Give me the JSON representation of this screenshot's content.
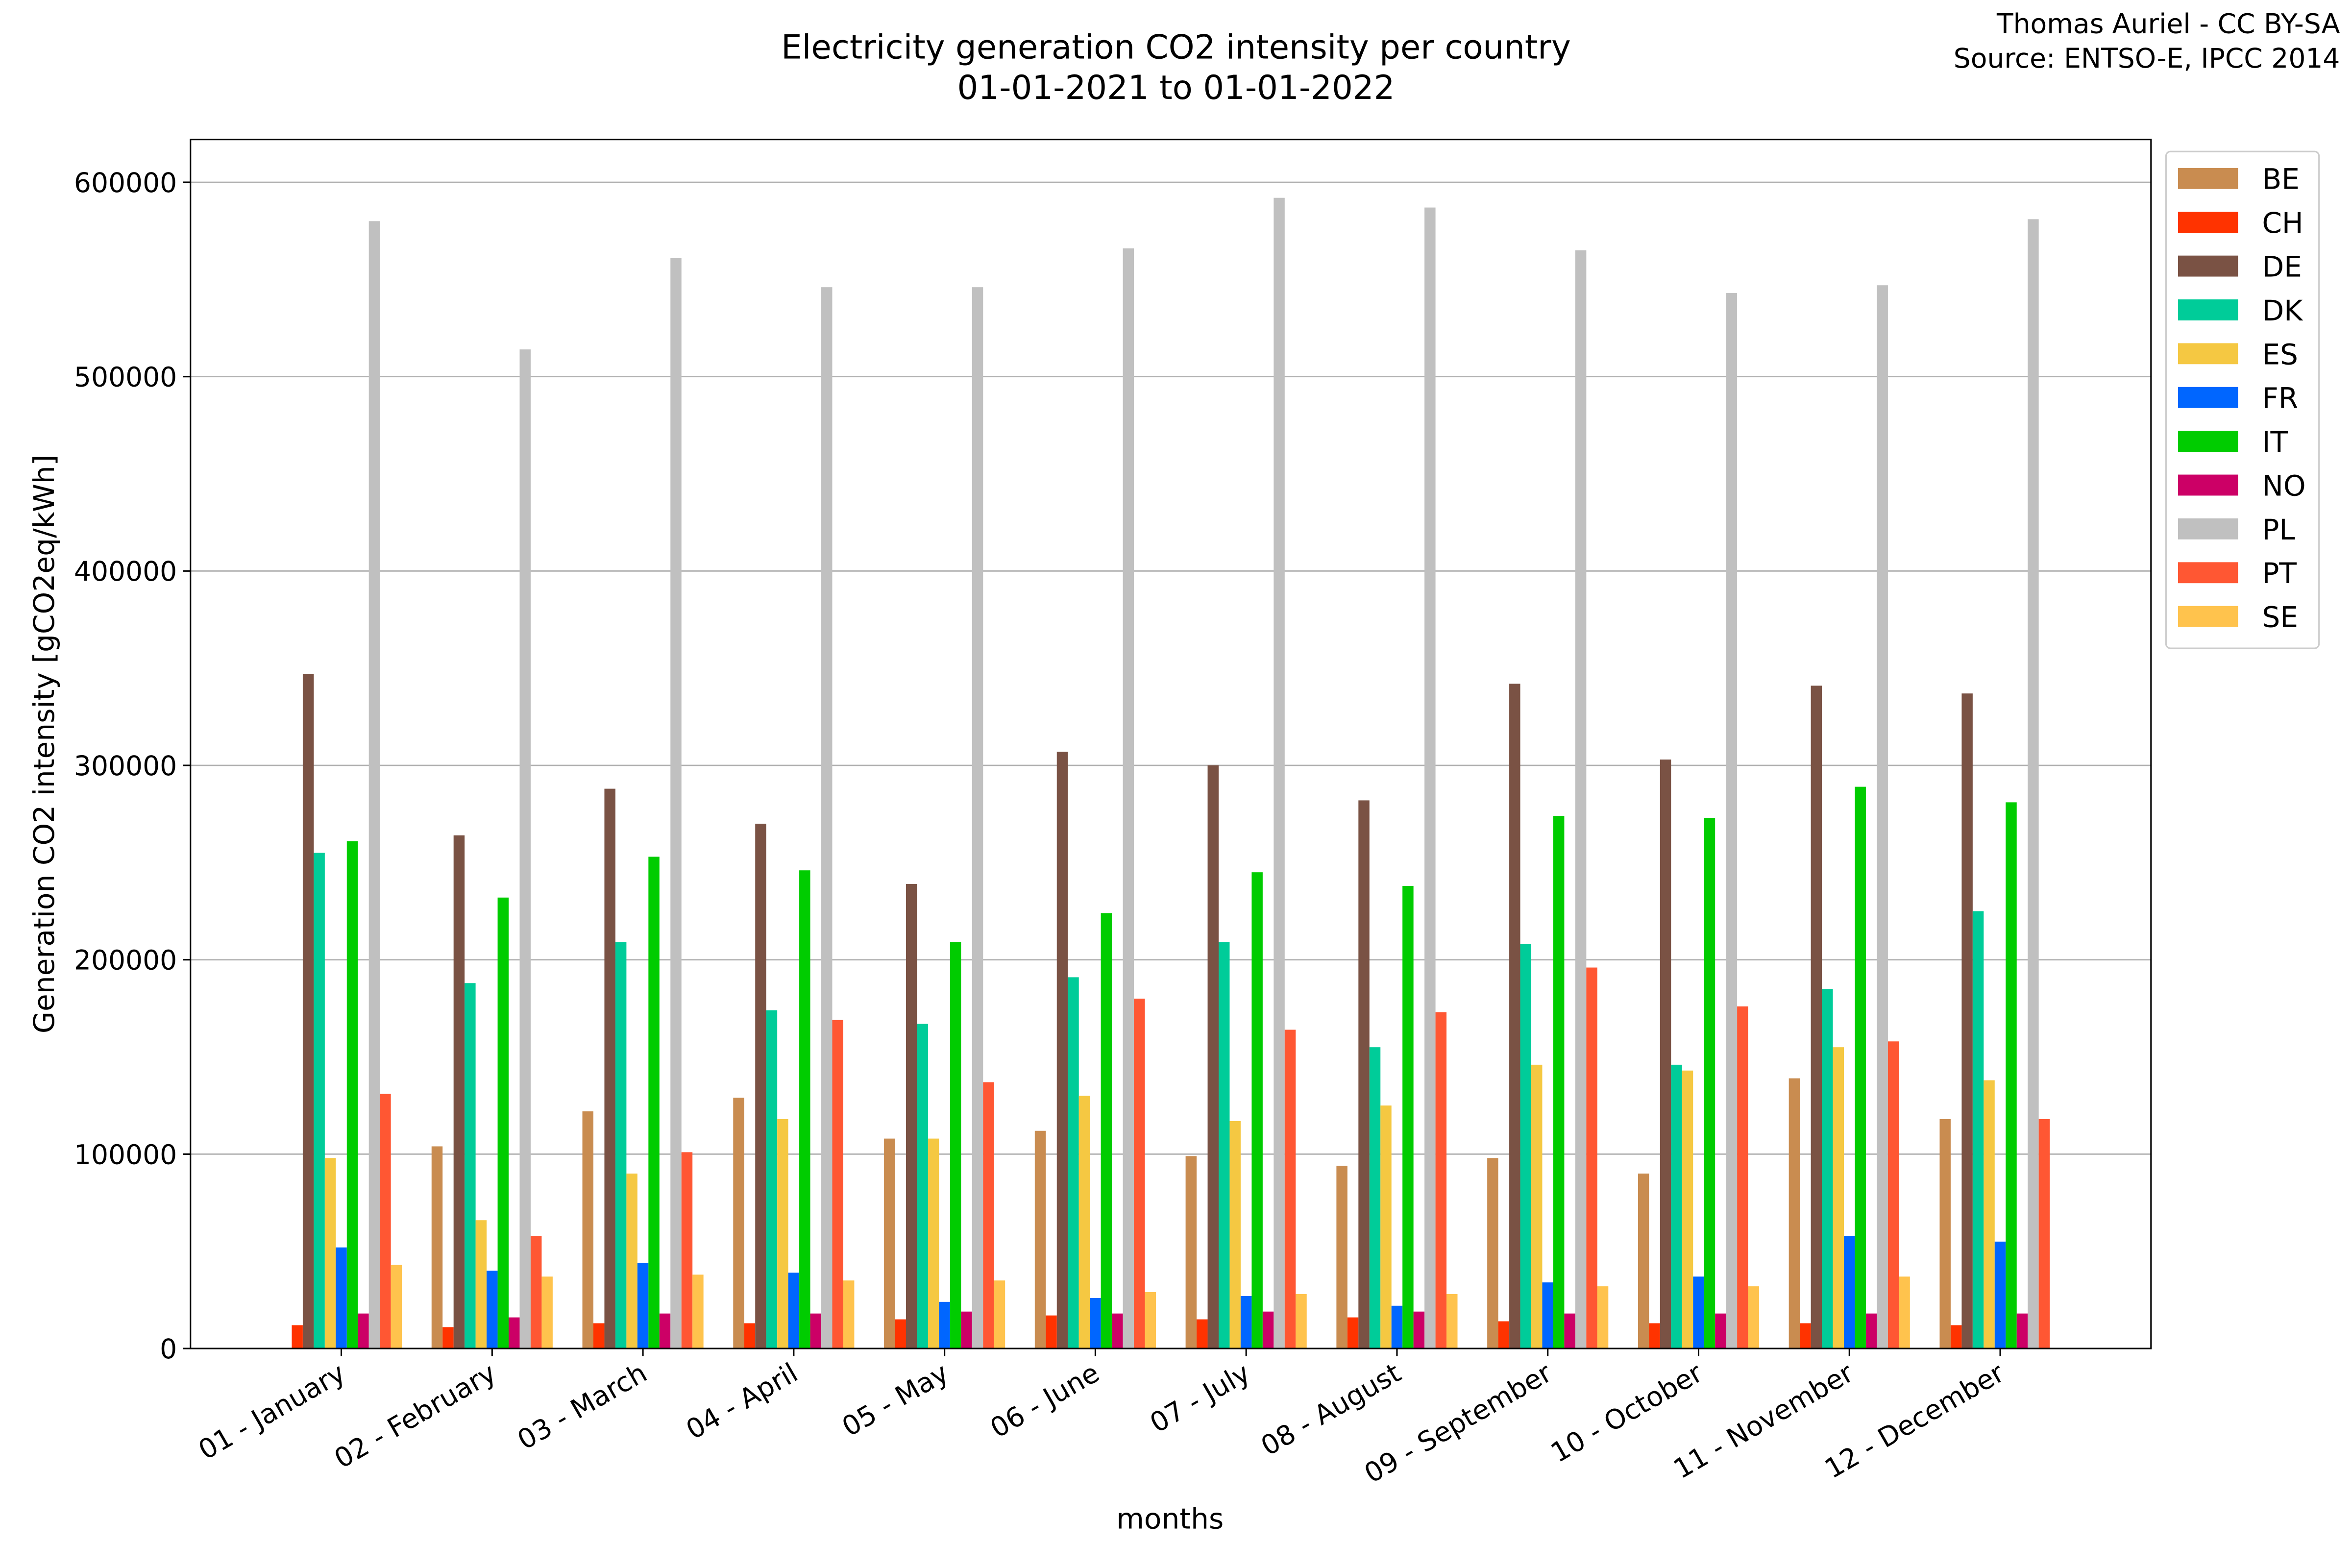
{
  "chart_data": {
    "type": "bar",
    "title": "Electricity generation CO2 intensity per country",
    "subtitle": "01-01-2021 to 01-01-2022",
    "annotations": [
      "Thomas Auriel - CC BY-SA",
      "Source: ENTSO-E, IPCC 2014"
    ],
    "x_label": "months",
    "y_label": "Generation CO2 intensity [gCO2eq/kWh]",
    "categories": [
      "01 - January",
      "02 - February",
      "03 - March",
      "04 - April",
      "05 - May",
      "06 - June",
      "07 - July",
      "08 - August",
      "09 - September",
      "10 - October",
      "11 - November",
      "12 - December"
    ],
    "series": [
      {
        "name": "BE",
        "color": "#c98c50",
        "values": [
          null,
          104000,
          122000,
          129000,
          108000,
          112000,
          99000,
          94000,
          98000,
          90000,
          139000,
          118000
        ]
      },
      {
        "name": "CH",
        "color": "#ff3300",
        "values": [
          12000,
          11000,
          13000,
          13000,
          15000,
          17000,
          15000,
          16000,
          14000,
          13000,
          13000,
          12000
        ]
      },
      {
        "name": "DE",
        "color": "#7a5244",
        "values": [
          347000,
          264000,
          288000,
          270000,
          239000,
          307000,
          300000,
          282000,
          342000,
          303000,
          341000,
          337000
        ]
      },
      {
        "name": "DK",
        "color": "#00cc99",
        "values": [
          255000,
          188000,
          209000,
          174000,
          167000,
          191000,
          209000,
          155000,
          208000,
          146000,
          185000,
          225000
        ]
      },
      {
        "name": "ES",
        "color": "#f5c842",
        "values": [
          98000,
          66000,
          90000,
          118000,
          108000,
          130000,
          117000,
          125000,
          146000,
          143000,
          155000,
          138000
        ]
      },
      {
        "name": "FR",
        "color": "#0066ff",
        "values": [
          52000,
          40000,
          44000,
          39000,
          24000,
          26000,
          27000,
          22000,
          34000,
          37000,
          58000,
          55000
        ]
      },
      {
        "name": "IT",
        "color": "#00cc00",
        "values": [
          261000,
          232000,
          253000,
          246000,
          209000,
          224000,
          245000,
          238000,
          274000,
          273000,
          289000,
          281000
        ]
      },
      {
        "name": "NO",
        "color": "#cc0066",
        "values": [
          18000,
          16000,
          18000,
          18000,
          19000,
          18000,
          19000,
          19000,
          18000,
          18000,
          18000,
          18000
        ]
      },
      {
        "name": "PL",
        "color": "#c0c0c0",
        "values": [
          580000,
          514000,
          561000,
          546000,
          546000,
          566000,
          592000,
          587000,
          565000,
          543000,
          547000,
          581000
        ]
      },
      {
        "name": "PT",
        "color": "#ff5733",
        "values": [
          131000,
          58000,
          101000,
          169000,
          137000,
          180000,
          164000,
          173000,
          196000,
          176000,
          158000,
          118000
        ]
      },
      {
        "name": "SE",
        "color": "#ffc34d",
        "values": [
          43000,
          37000,
          38000,
          35000,
          35000,
          29000,
          28000,
          28000,
          32000,
          32000,
          37000,
          null
        ]
      }
    ],
    "ylim": [
      0,
      622000
    ],
    "yticks": [
      0,
      100000,
      200000,
      300000,
      400000,
      500000,
      600000
    ],
    "grid": true,
    "legend": "outside-upper-right"
  }
}
